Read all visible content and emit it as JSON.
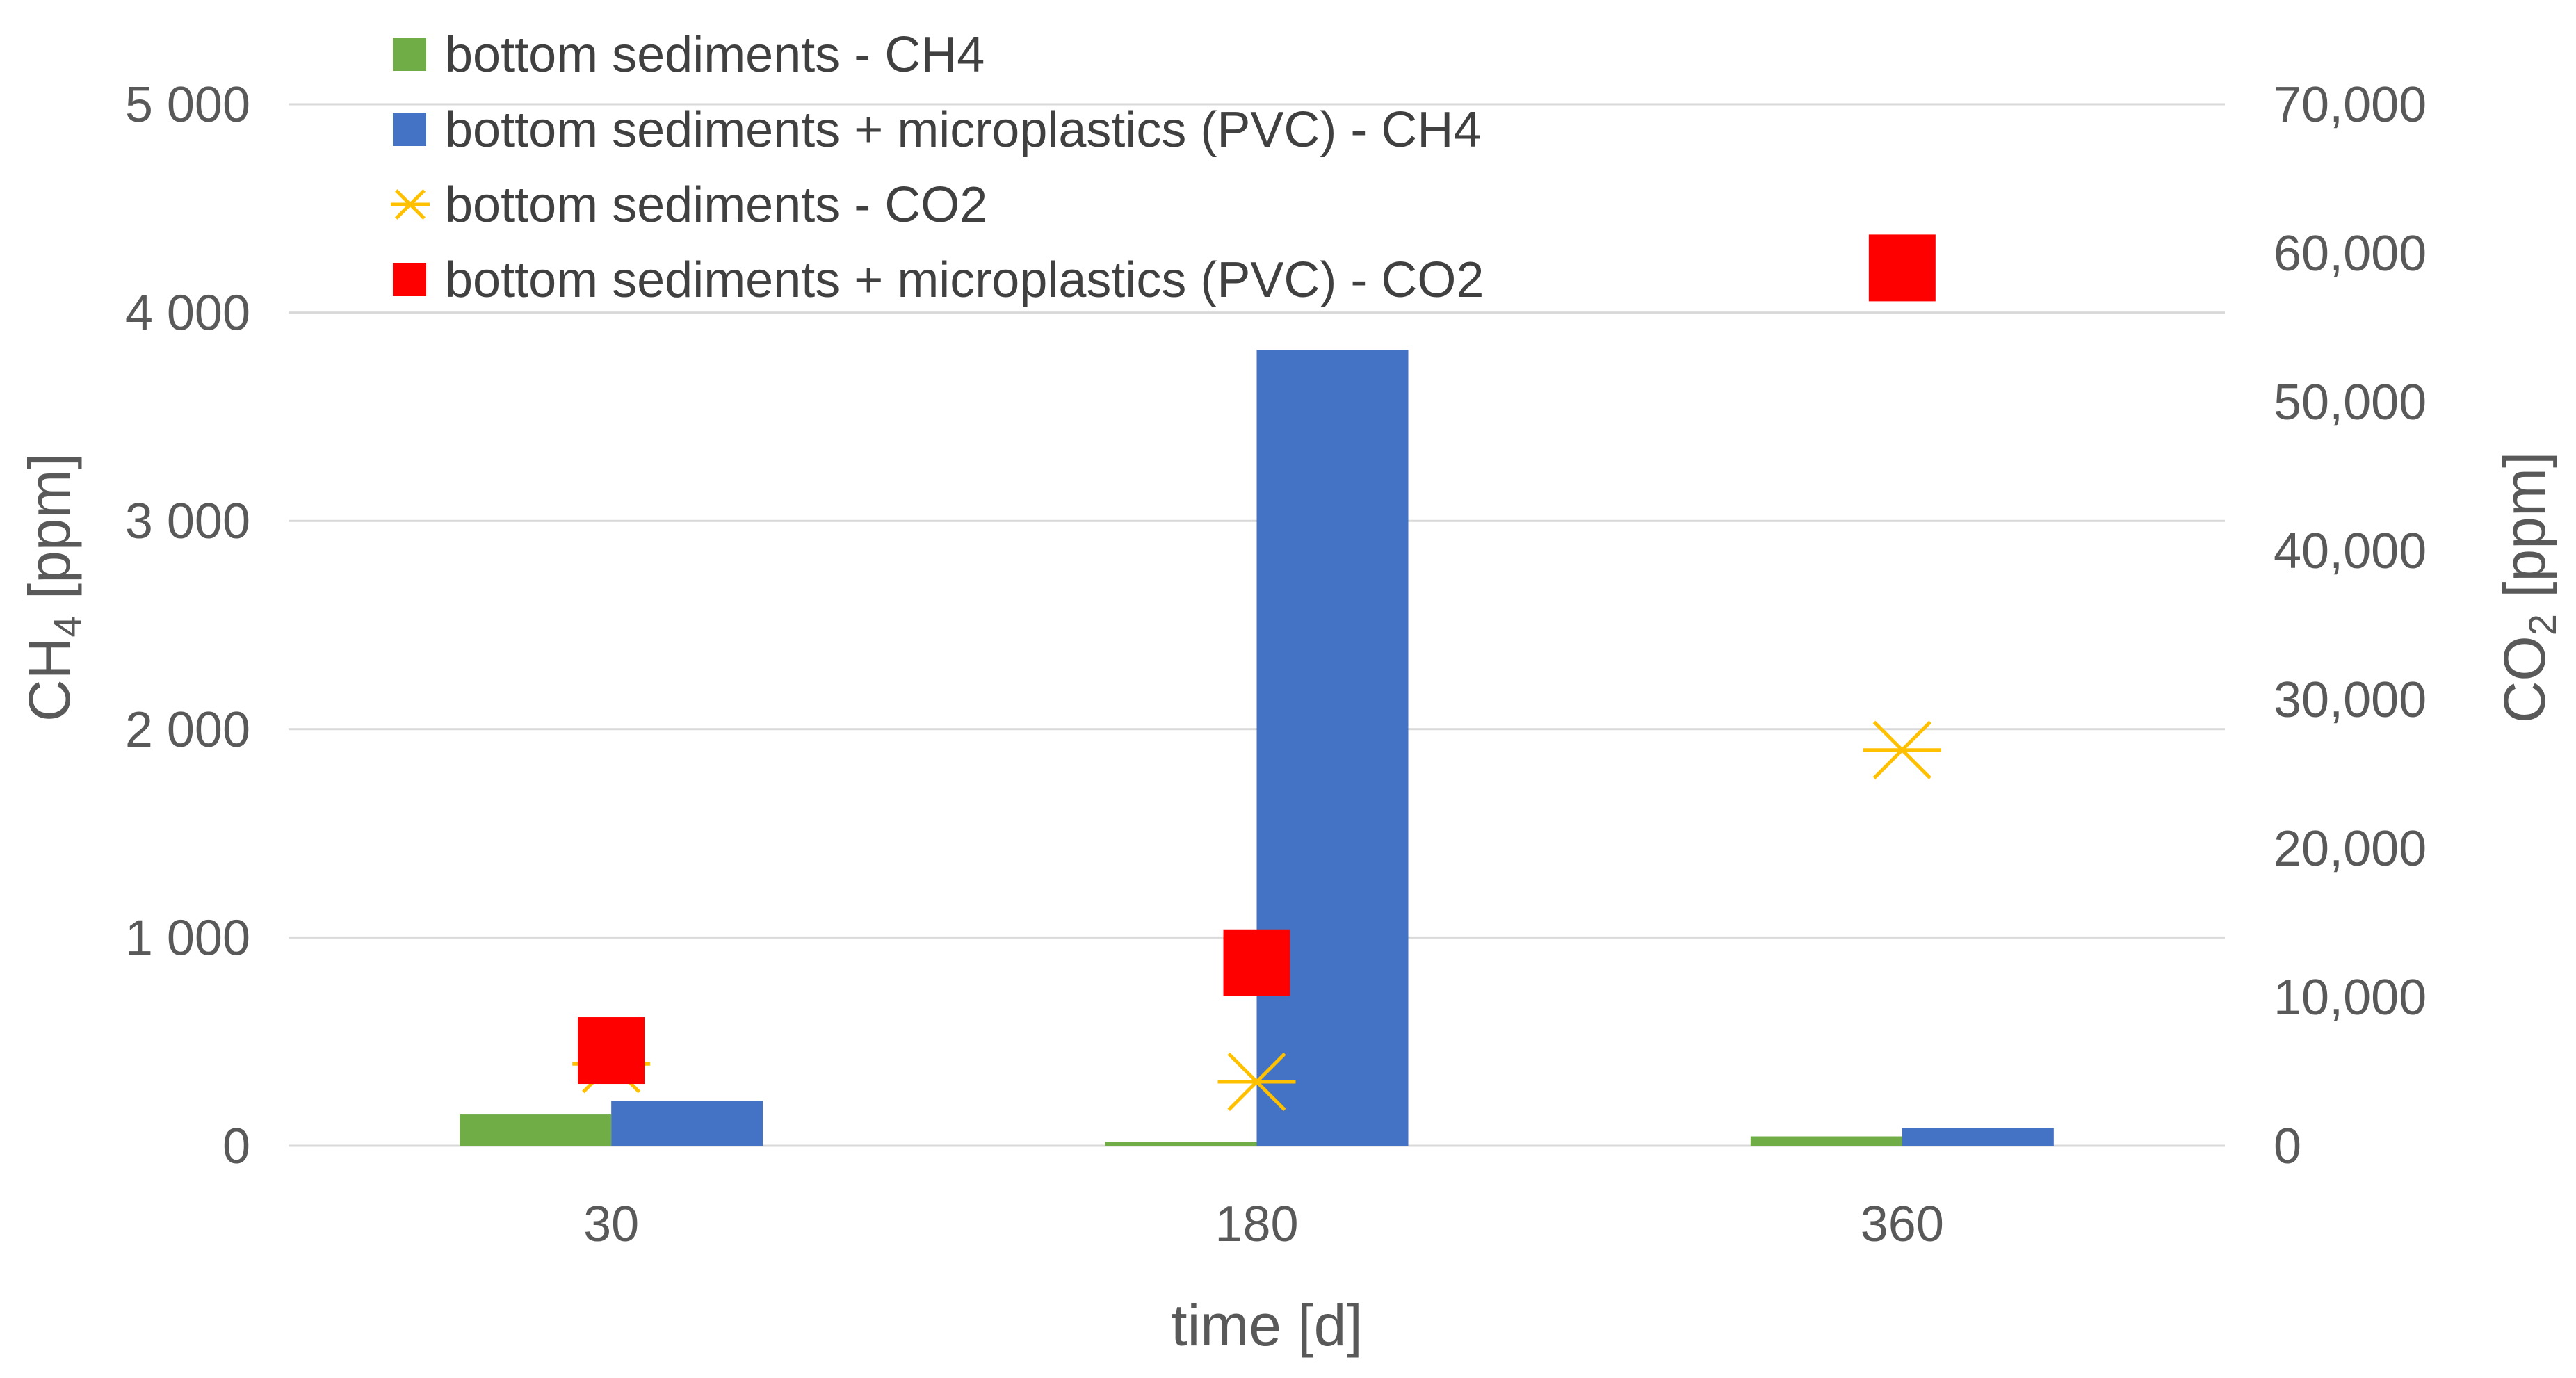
{
  "chart_data": {
    "type": "bar",
    "title": "",
    "xlabel": "time [d]",
    "ylabel": {
      "base": "CH",
      "sub": "4",
      "unit": " [ppm]"
    },
    "y2label": {
      "base": "CO",
      "sub": "2",
      "unit": " [ppm]"
    },
    "categories": [
      "30",
      "180",
      "360"
    ],
    "ylim": [
      0,
      5000
    ],
    "y_ticks": [
      0,
      1000,
      2000,
      3000,
      4000,
      5000
    ],
    "y_tick_labels": [
      "0",
      "1 000",
      "2 000",
      "3 000",
      "4 000",
      "5 000"
    ],
    "y2lim": [
      0,
      70000
    ],
    "y2_ticks": [
      0,
      10000,
      20000,
      30000,
      40000,
      50000,
      60000,
      70000
    ],
    "y2_tick_labels": [
      "0",
      "10,000",
      "20,000",
      "30,000",
      "40,000",
      "50,000",
      "60,000",
      "70,000"
    ],
    "grid": true,
    "legend_position": "top-left",
    "series": [
      {
        "name": "bottom sediments - CH4",
        "kind": "bar",
        "axis": "left",
        "color": "#70ad47",
        "marker": "square-swatch",
        "values": [
          150,
          20,
          45
        ]
      },
      {
        "name": "bottom sediments + microplastics (PVC) - CH4",
        "kind": "bar",
        "axis": "left",
        "color": "#4472c4",
        "marker": "square-swatch",
        "values": [
          215,
          3820,
          85
        ]
      },
      {
        "name": "bottom sediments - CO2",
        "kind": "scatter",
        "axis": "right",
        "color": "#ffc000",
        "marker": "asterisk",
        "values": [
          5500,
          4300,
          26600
        ]
      },
      {
        "name": "bottom sediments + microplastics (PVC) - CO2",
        "kind": "scatter",
        "axis": "right",
        "color": "#ff0000",
        "marker": "square",
        "values": [
          6400,
          12300,
          59000
        ]
      }
    ]
  }
}
